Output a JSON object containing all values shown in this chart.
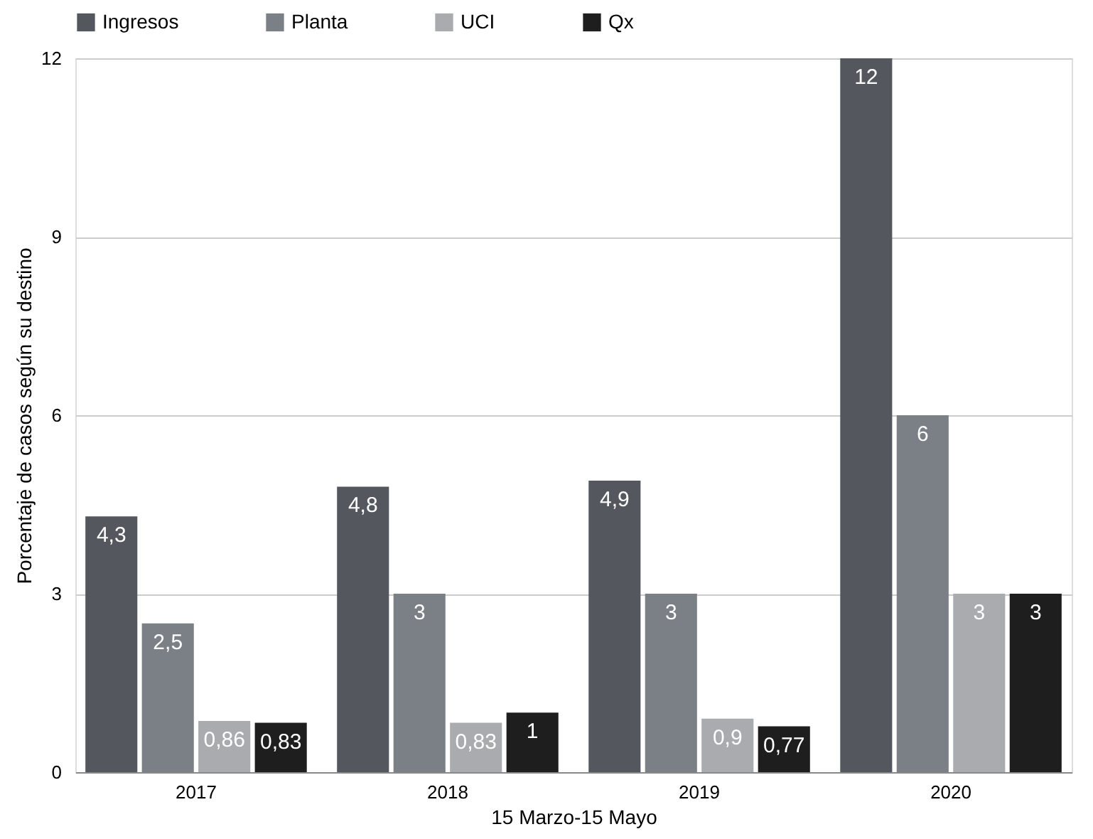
{
  "chart_data": {
    "type": "bar",
    "categories": [
      "2017",
      "2018",
      "2019",
      "2020"
    ],
    "xlabel": "15 Marzo-15 Mayo",
    "ylabel": "Porcentaje de casos según su destino",
    "ylim": [
      0,
      12
    ],
    "yticks": [
      0,
      3,
      6,
      9,
      12
    ],
    "grid": "y",
    "legend": "top",
    "series": [
      {
        "name": "Ingresos",
        "color": "#54585e",
        "values": [
          4.3,
          4.8,
          4.9,
          12
        ],
        "value_labels": [
          "4,3",
          "4,8",
          "4,9",
          "12"
        ]
      },
      {
        "name": "Planta",
        "color": "#7b7f86",
        "values": [
          2.5,
          3,
          3,
          6
        ],
        "value_labels": [
          "2,5",
          "3",
          "3",
          "6"
        ]
      },
      {
        "name": "UCI",
        "color": "#a9abae",
        "values": [
          0.86,
          0.83,
          0.9,
          3
        ],
        "value_labels": [
          "0,86",
          "0,83",
          "0,9",
          "3"
        ]
      },
      {
        "name": "Qx",
        "color": "#1e1e1e",
        "values": [
          0.83,
          1,
          0.77,
          3
        ],
        "value_labels": [
          "0,83",
          "1",
          "0,77",
          "3"
        ]
      }
    ]
  }
}
